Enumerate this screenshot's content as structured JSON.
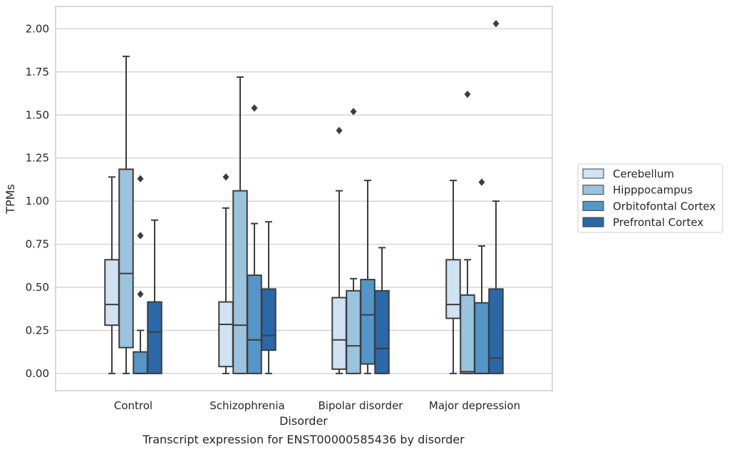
{
  "chart_data": {
    "type": "box",
    "xlabel": "Disorder",
    "ylabel": "TPMs",
    "caption": "Transcript expression for ENST00000585436 by disorder",
    "ylim": [
      -0.1,
      2.13
    ],
    "yticks": [
      "0.00",
      "0.25",
      "0.50",
      "0.75",
      "1.00",
      "1.25",
      "1.50",
      "1.75",
      "2.00"
    ],
    "grid": "horizontal",
    "legend_position": "outside-right",
    "categories": [
      "Control",
      "Schizophrenia",
      "Bipolar disorder",
      "Major depression"
    ],
    "series": [
      {
        "name": "Cerebellum",
        "color": "#d1e2f2",
        "boxes": [
          {
            "whislo": 0.0,
            "q1": 0.28,
            "med": 0.4,
            "q3": 0.66,
            "whishi": 1.14,
            "fliers": []
          },
          {
            "whislo": 0.0,
            "q1": 0.04,
            "med": 0.285,
            "q3": 0.415,
            "whishi": 0.96,
            "fliers": [
              1.14
            ]
          },
          {
            "whislo": 0.0,
            "q1": 0.025,
            "med": 0.195,
            "q3": 0.44,
            "whishi": 1.06,
            "fliers": [
              1.41
            ]
          },
          {
            "whislo": 0.0,
            "q1": 0.32,
            "med": 0.4,
            "q3": 0.66,
            "whishi": 1.12,
            "fliers": []
          }
        ]
      },
      {
        "name": "Hipppocampus",
        "color": "#9ac3de",
        "boxes": [
          {
            "whislo": 0.0,
            "q1": 0.15,
            "med": 0.58,
            "q3": 1.185,
            "whishi": 1.84,
            "fliers": []
          },
          {
            "whislo": 0.0,
            "q1": 0.0,
            "med": 0.28,
            "q3": 1.06,
            "whishi": 1.72,
            "fliers": []
          },
          {
            "whislo": 0.0,
            "q1": 0.0,
            "med": 0.16,
            "q3": 0.48,
            "whishi": 0.55,
            "fliers": [
              1.52
            ]
          },
          {
            "whislo": 0.0,
            "q1": 0.0,
            "med": 0.01,
            "q3": 0.455,
            "whishi": 0.66,
            "fliers": [
              1.62
            ]
          }
        ]
      },
      {
        "name": "Orbitofontal Cortex",
        "color": "#5496c7",
        "boxes": [
          {
            "whislo": 0.0,
            "q1": 0.0,
            "med": 0.0,
            "q3": 0.125,
            "whishi": 0.25,
            "fliers": [
              0.46,
              0.8,
              1.13
            ]
          },
          {
            "whislo": 0.0,
            "q1": 0.0,
            "med": 0.195,
            "q3": 0.57,
            "whishi": 0.87,
            "fliers": [
              1.54
            ]
          },
          {
            "whislo": 0.0,
            "q1": 0.055,
            "med": 0.34,
            "q3": 0.545,
            "whishi": 1.12,
            "fliers": []
          },
          {
            "whislo": 0.0,
            "q1": 0.0,
            "med": 0.0,
            "q3": 0.41,
            "whishi": 0.74,
            "fliers": [
              1.11
            ]
          }
        ]
      },
      {
        "name": "Prefrontal Cortex",
        "color": "#2a68a8",
        "boxes": [
          {
            "whislo": 0.0,
            "q1": 0.0,
            "med": 0.24,
            "q3": 0.415,
            "whishi": 0.89,
            "fliers": []
          },
          {
            "whislo": 0.0,
            "q1": 0.135,
            "med": 0.22,
            "q3": 0.49,
            "whishi": 0.88,
            "fliers": []
          },
          {
            "whislo": 0.0,
            "q1": 0.0,
            "med": 0.145,
            "q3": 0.48,
            "whishi": 0.73,
            "fliers": []
          },
          {
            "whislo": 0.0,
            "q1": 0.0,
            "med": 0.09,
            "q3": 0.49,
            "whishi": 1.0,
            "fliers": [
              2.03
            ]
          }
        ]
      }
    ]
  }
}
